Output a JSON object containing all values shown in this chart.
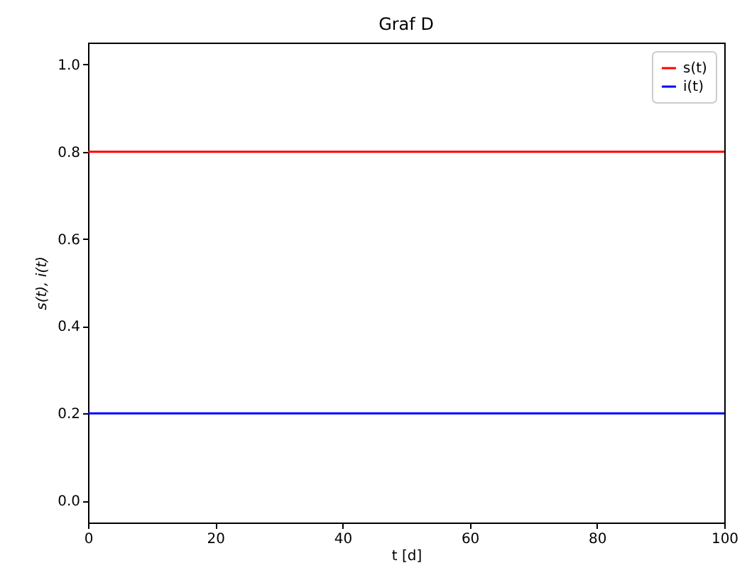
{
  "chart_data": {
    "type": "line",
    "title": "Graf D",
    "xlabel": "t [d]",
    "ylabel": "s(t), i(t)",
    "x": [
      0,
      100
    ],
    "series": [
      {
        "name": "s(t)",
        "color": "#ff0000",
        "values": [
          0.8,
          0.8
        ]
      },
      {
        "name": "i(t)",
        "color": "#0000ff",
        "values": [
          0.2,
          0.2
        ]
      }
    ],
    "xlim": [
      0,
      100
    ],
    "xticks": [
      0,
      20,
      40,
      60,
      80,
      100
    ],
    "ylim": [
      -0.05,
      1.05
    ],
    "yticks": [
      {
        "value": 0,
        "label": "0.0"
      },
      {
        "value": 0.2,
        "label": "0.2"
      },
      {
        "value": 0.4,
        "label": "0.4"
      },
      {
        "value": 0.6,
        "label": "0.6"
      },
      {
        "value": 0.8,
        "label": "0.8"
      },
      {
        "value": 1,
        "label": "1.0"
      }
    ],
    "legend": "top right"
  }
}
